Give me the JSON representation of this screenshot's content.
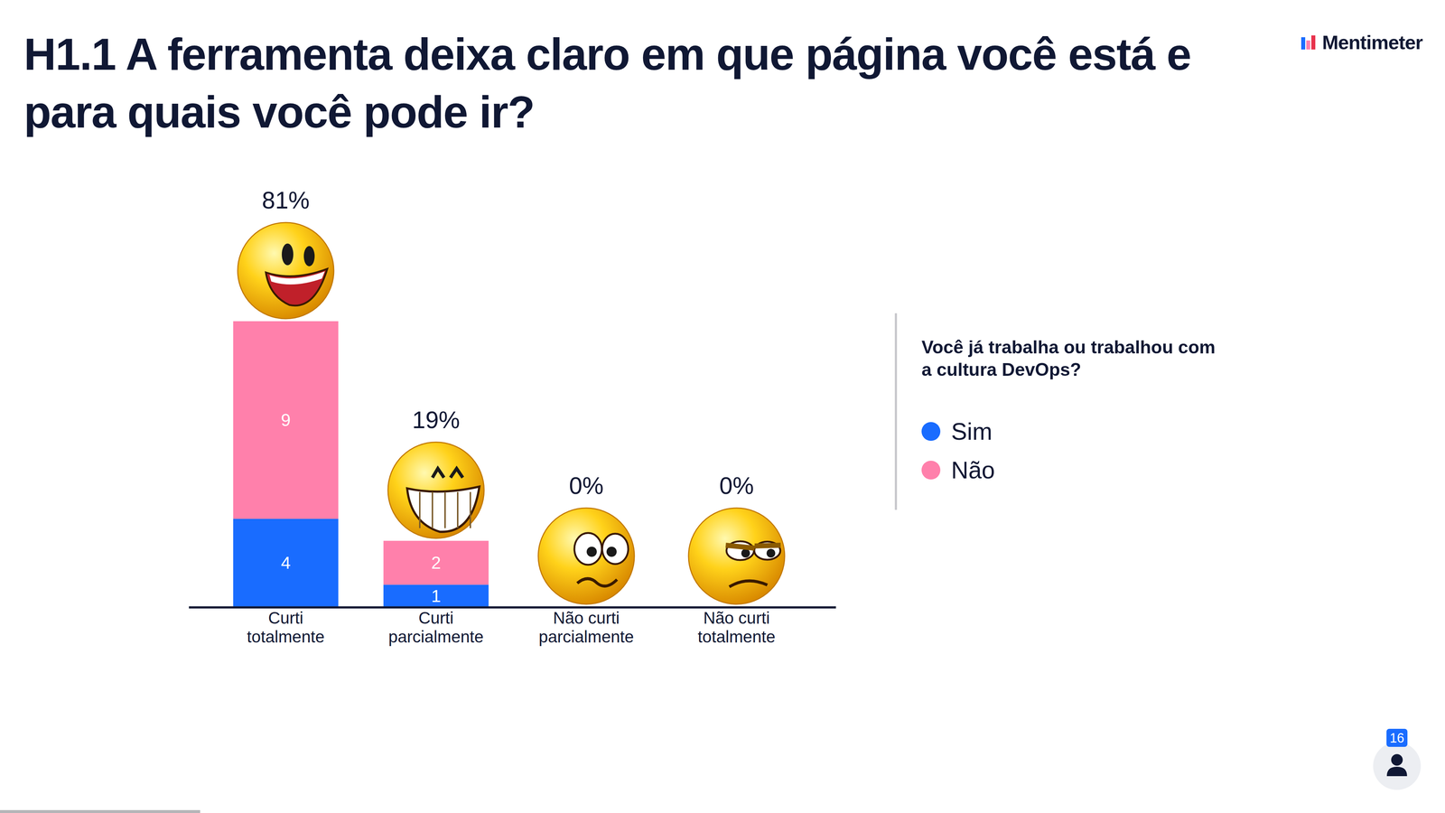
{
  "brand": "Mentimeter",
  "participants": 16,
  "chart_data": {
    "type": "bar",
    "title": "H1.1 A ferramenta deixa claro em que página você está e para quais você pode ir?",
    "categories": [
      "Curti totalmente",
      "Curti parcialmente",
      "Não curti parcialmente",
      "Não curti totalmente"
    ],
    "series": [
      {
        "name": "Sim",
        "color": "#196CFF",
        "values": [
          4,
          1,
          0,
          0
        ]
      },
      {
        "name": "Não",
        "color": "#FF80AB",
        "values": [
          9,
          2,
          0,
          0
        ]
      }
    ],
    "annotations": [
      "81%",
      "19%",
      "0%",
      "0%"
    ],
    "legend_title": "Você já trabalha ou trabalhou com a cultura DevOps?",
    "legend": "right",
    "stacked": true,
    "data_labels": true,
    "tick_labels": "x",
    "ylim": [
      0,
      13
    ]
  }
}
